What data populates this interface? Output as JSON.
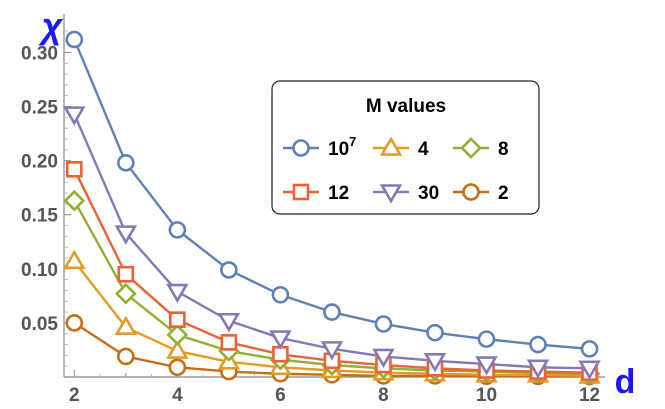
{
  "chart_data": {
    "type": "line",
    "xlabel": "d",
    "ylabel": "χ",
    "x": [
      2,
      3,
      4,
      5,
      6,
      7,
      8,
      9,
      10,
      11,
      12
    ],
    "xlim": [
      1.8,
      12.3
    ],
    "ylim": [
      0,
      0.33
    ],
    "xticks": [
      "2",
      "4",
      "6",
      "8",
      "10",
      "12"
    ],
    "yticks": [
      "0.05",
      "0.10",
      "0.15",
      "0.20",
      "0.25",
      "0.30"
    ],
    "grid": false,
    "legend": {
      "title": "M values",
      "placement": "top-right",
      "rows": [
        [
          0,
          1,
          2
        ],
        [
          3,
          4,
          5
        ]
      ]
    },
    "series": [
      {
        "name": "10",
        "name_sup": "7",
        "marker": "circle",
        "color": "#5e81b5",
        "values": [
          0.312,
          0.198,
          0.136,
          0.099,
          0.076,
          0.06,
          0.049,
          0.041,
          0.035,
          0.03,
          0.026
        ]
      },
      {
        "name": "4",
        "marker": "triangle-up",
        "color": "#e19c24",
        "values": [
          0.107,
          0.046,
          0.024,
          0.014,
          0.009,
          0.006,
          0.004,
          0.003,
          0.002,
          0.002,
          0.001
        ]
      },
      {
        "name": "8",
        "marker": "diamond",
        "color": "#8fb032",
        "values": [
          0.163,
          0.077,
          0.039,
          0.024,
          0.016,
          0.011,
          0.008,
          0.006,
          0.005,
          0.004,
          0.003
        ]
      },
      {
        "name": "12",
        "marker": "square",
        "color": "#eb6235",
        "values": [
          0.192,
          0.095,
          0.053,
          0.032,
          0.021,
          0.015,
          0.011,
          0.008,
          0.006,
          0.005,
          0.004
        ]
      },
      {
        "name": "30",
        "marker": "triangle-down",
        "color": "#8778b3",
        "values": [
          0.243,
          0.133,
          0.079,
          0.052,
          0.036,
          0.026,
          0.019,
          0.015,
          0.012,
          0.009,
          0.008
        ]
      },
      {
        "name": "2",
        "marker": "circle",
        "color": "#c56e1a",
        "values": [
          0.05,
          0.019,
          0.009,
          0.005,
          0.003,
          0.002,
          0.001,
          0.001,
          0.0007,
          0.0005,
          0.0004
        ]
      }
    ]
  }
}
